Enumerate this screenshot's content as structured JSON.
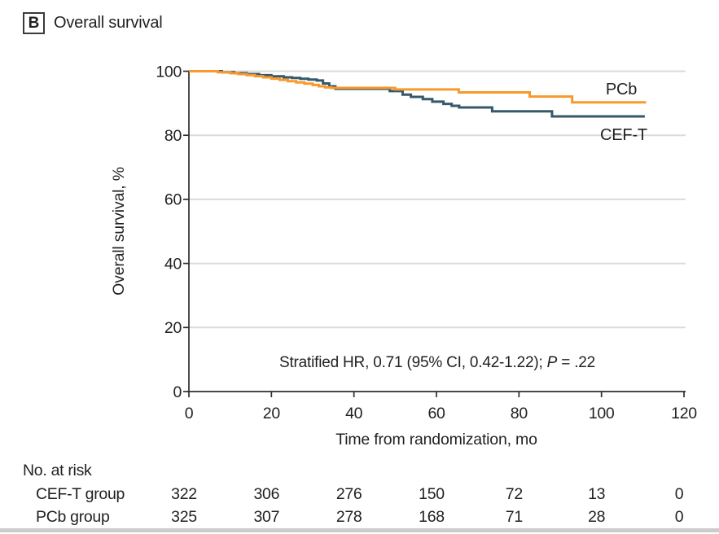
{
  "header": {
    "panel_label": "B",
    "title": "Overall survival"
  },
  "colors": {
    "ink": "#231F20",
    "axis": "#2E2E2E",
    "grid": "#DBDBDB",
    "rule": "#CCCCCC",
    "cef_t": "#35596A",
    "pcb": "#F8992C"
  },
  "chart_data": {
    "type": "line",
    "subtype": "kaplan-meier-step",
    "title": "Overall survival",
    "xlabel": "Time from randomization, mo",
    "ylabel": "Overall survival, %",
    "xlim": [
      0,
      120
    ],
    "ylim": [
      0,
      100
    ],
    "xticks": [
      0,
      20,
      40,
      60,
      80,
      100,
      120
    ],
    "yticks": [
      0,
      20,
      40,
      60,
      80,
      100
    ],
    "grid": "horizontal",
    "legend_position": "right-of-curve-ends",
    "annotation": {
      "prefix": "Stratified HR, 0.71 (95% CI, 0.42-1.22); ",
      "italic": "P",
      "suffix": " = .22"
    },
    "series": [
      {
        "name": "CEF-T",
        "color_key": "cef_t",
        "points": [
          [
            0,
            100
          ],
          [
            8,
            99.7
          ],
          [
            11,
            99.4
          ],
          [
            14,
            99.1
          ],
          [
            17,
            98.75
          ],
          [
            20,
            98.4
          ],
          [
            23,
            98.1
          ],
          [
            25,
            97.9
          ],
          [
            27,
            97.65
          ],
          [
            29,
            97.4
          ],
          [
            31,
            97.1
          ],
          [
            32.5,
            96.2
          ],
          [
            34,
            95.3
          ],
          [
            35.5,
            94.5
          ],
          [
            48.7,
            93.8
          ],
          [
            51.8,
            92.7
          ],
          [
            53.8,
            92.0
          ],
          [
            56.7,
            91.3
          ],
          [
            59,
            90.5
          ],
          [
            61.7,
            89.8
          ],
          [
            63.7,
            89.2
          ],
          [
            65.5,
            88.7
          ],
          [
            73.5,
            87.5
          ],
          [
            88,
            85.9
          ],
          [
            110.5,
            85.9
          ]
        ]
      },
      {
        "name": "PCb",
        "color_key": "pcb",
        "points": [
          [
            0,
            100
          ],
          [
            7,
            99.7
          ],
          [
            10,
            99.4
          ],
          [
            12,
            99.1
          ],
          [
            14,
            98.8
          ],
          [
            16,
            98.45
          ],
          [
            18,
            98.1
          ],
          [
            20,
            97.7
          ],
          [
            22,
            97.3
          ],
          [
            24,
            96.9
          ],
          [
            26,
            96.5
          ],
          [
            28,
            96.1
          ],
          [
            30,
            95.7
          ],
          [
            31.5,
            95.3
          ],
          [
            33,
            94.95
          ],
          [
            34.5,
            94.8
          ],
          [
            50,
            94.3
          ],
          [
            65.4,
            93.4
          ],
          [
            82.6,
            92.1
          ],
          [
            92.9,
            90.3
          ],
          [
            110.8,
            90.3
          ]
        ]
      }
    ]
  },
  "risk_table": {
    "title": "No. at risk",
    "times": [
      0,
      20,
      40,
      60,
      80,
      100,
      120
    ],
    "rows": [
      {
        "label": "CEF-T group",
        "values": [
          "322",
          "306",
          "276",
          "150",
          "72",
          "13",
          "0"
        ]
      },
      {
        "label": "PCb group",
        "values": [
          "325",
          "307",
          "278",
          "168",
          "71",
          "28",
          "0"
        ]
      }
    ]
  }
}
